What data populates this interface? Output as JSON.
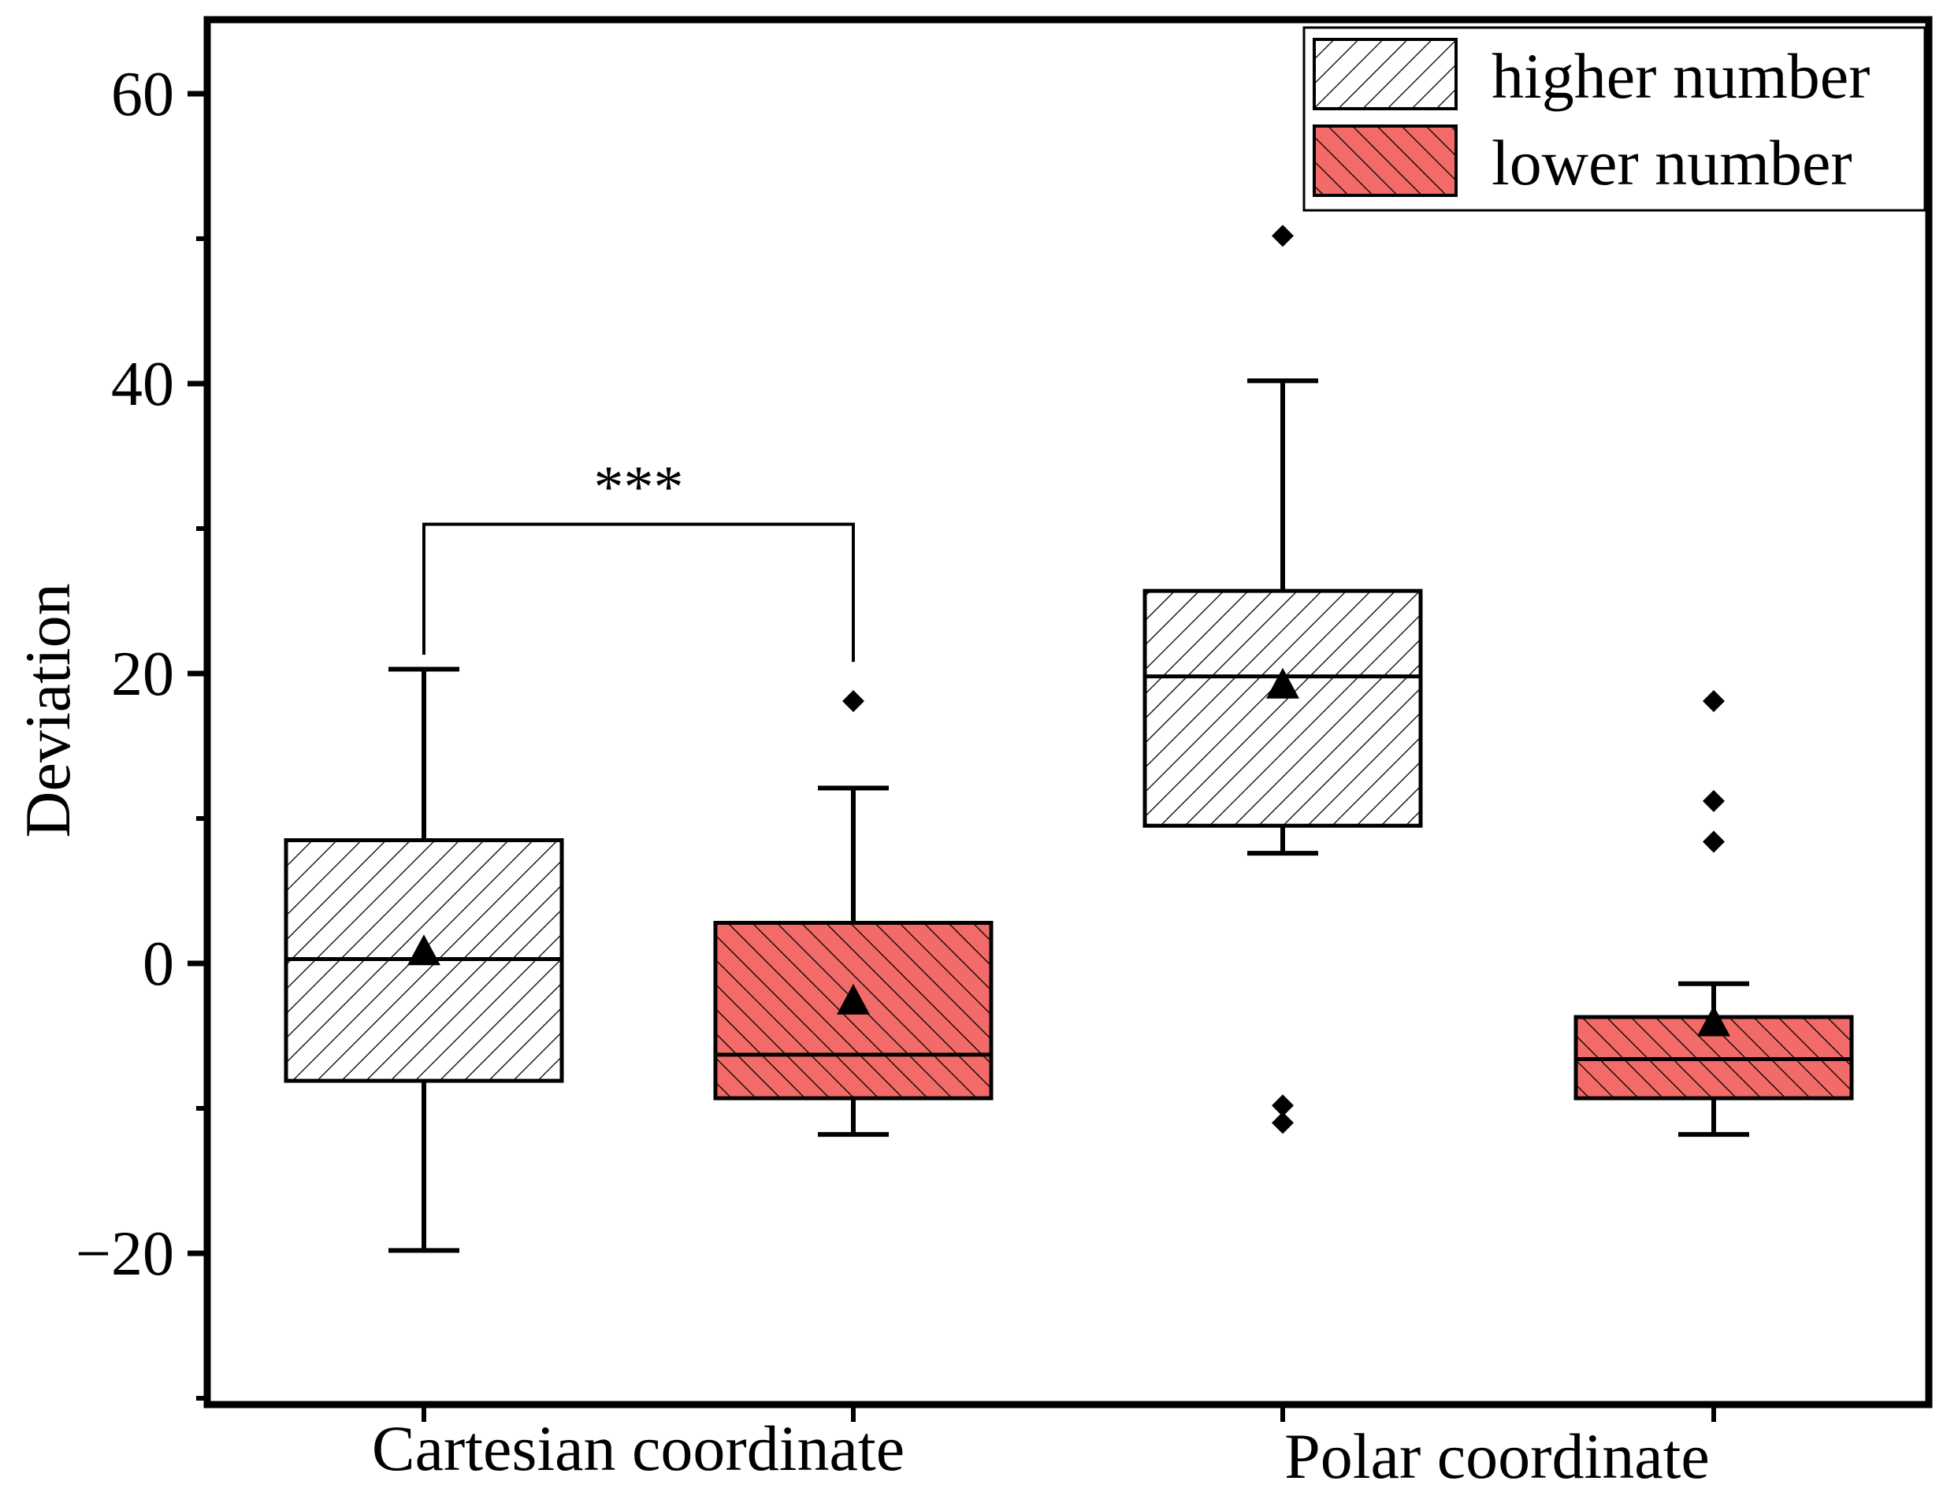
{
  "chart_data": {
    "type": "box",
    "title": "",
    "xlabel": "",
    "ylabel": "Deviation",
    "ylim": [
      -30,
      65
    ],
    "yticks": [
      -20,
      0,
      20,
      40,
      60
    ],
    "yticks_minor": [
      -30,
      -10,
      10,
      30,
      50
    ],
    "ytick_labels": [
      "−20",
      "0",
      "20",
      "40",
      "60"
    ],
    "categories": [
      "Cartesian coordinate",
      "Polar coordinate"
    ],
    "legend_position": "top-right",
    "series": [
      {
        "name": "higher number",
        "color": "#ffffff",
        "hatch": "forward-diagonal",
        "boxes": [
          {
            "category": "Cartesian coordinate",
            "whisker_low": -19.8,
            "q1": -8.1,
            "median": 0.3,
            "q3": 8.5,
            "whisker_high": 20.3,
            "mean": 0.8,
            "outliers": []
          },
          {
            "category": "Polar coordinate",
            "whisker_low": 7.6,
            "q1": 9.5,
            "median": 19.8,
            "q3": 25.7,
            "whisker_high": 40.2,
            "mean": 19.2,
            "outliers": [
              50.2,
              -9.8,
              -11.0
            ]
          }
        ]
      },
      {
        "name": "lower number",
        "color": "#f26b68",
        "hatch": "back-diagonal",
        "boxes": [
          {
            "category": "Cartesian coordinate",
            "whisker_low": -11.8,
            "q1": -9.3,
            "median": -6.3,
            "q3": 2.8,
            "whisker_high": 12.1,
            "mean": -2.6,
            "outliers": [
              18.1
            ]
          },
          {
            "category": "Polar coordinate",
            "whisker_low": -11.8,
            "q1": -9.3,
            "median": -6.6,
            "q3": -3.7,
            "whisker_high": -1.4,
            "mean": -4.1,
            "outliers": [
              18.1,
              11.2,
              8.4
            ]
          }
        ]
      }
    ],
    "annotations": [
      {
        "text": "***",
        "from": {
          "category": "Cartesian coordinate",
          "series": "higher number"
        },
        "to": {
          "category": "Cartesian coordinate",
          "series": "lower number"
        },
        "y": 30.3,
        "left_drop_to": 21.3,
        "right_drop_to": 20.8
      }
    ]
  }
}
